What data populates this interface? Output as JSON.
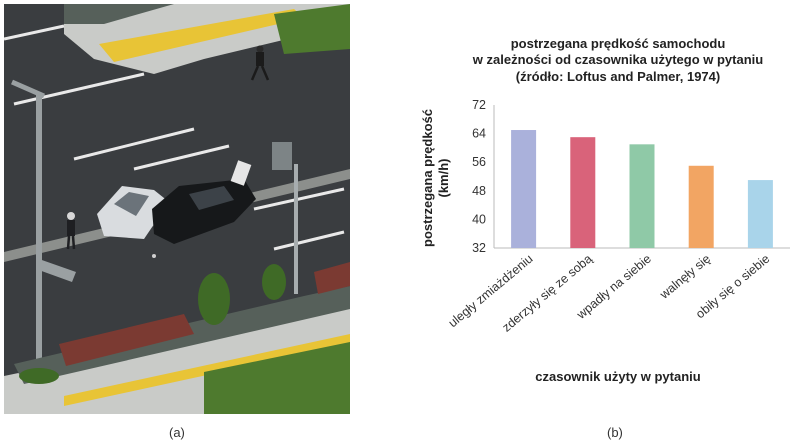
{
  "panel_a": {
    "caption": "(a)"
  },
  "panel_b": {
    "caption": "(b)"
  },
  "colors": {
    "bars": [
      "#aab1db",
      "#d9637a",
      "#8fc9a7",
      "#f2a563",
      "#a9d4ea"
    ],
    "axis": "#bbbbbb",
    "road": "#3a3d40",
    "sidewalk": "#c9cbc8",
    "hedge": "#7b3a32",
    "grass": "#4e7a2e",
    "crosswalk_yellow": "#e8c436"
  },
  "chart_data": {
    "type": "bar",
    "title_lines": [
      "postrzegana prędkość samochodu",
      "w zależności od czasownika użytego w pytaniu",
      "(źródło: Loftus and Palmer, 1974)"
    ],
    "categories": [
      "uległy zmiażdżeniu",
      "zderzyły się ze sobą",
      "wpadły na siebie",
      "walnęły się",
      "obiły się o siebie"
    ],
    "values": [
      65,
      63,
      61,
      55,
      51
    ],
    "ylim": [
      32,
      72
    ],
    "yticks": [
      32,
      40,
      48,
      56,
      64,
      72
    ],
    "ylabel_lines": [
      "postrzegana prędkość",
      "(km/h)"
    ],
    "xlabel": "czasownik użyty w pytaniu",
    "grid": false
  }
}
